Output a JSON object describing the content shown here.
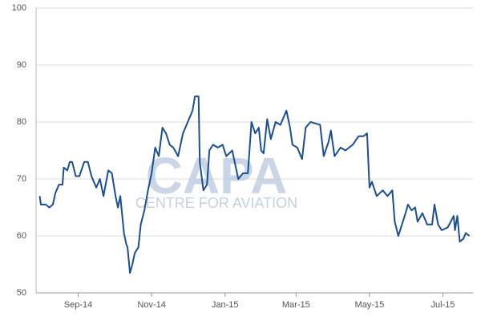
{
  "chart_data": {
    "type": "line",
    "watermark": {
      "title": "CAPA",
      "subtitle": "CENTRE FOR AVIATION"
    },
    "x": [
      -1,
      0,
      4,
      7,
      10,
      12,
      15,
      18,
      19,
      22,
      24,
      26,
      29,
      32,
      36,
      39,
      42,
      46,
      49,
      52,
      56,
      59,
      62,
      64,
      66,
      69,
      71,
      72,
      74,
      76,
      78,
      81,
      83,
      86,
      89,
      92,
      95,
      98,
      101,
      104,
      107,
      110,
      114,
      118,
      122,
      126,
      128,
      131,
      132,
      135,
      138,
      140,
      143,
      147,
      151,
      154,
      159,
      164,
      168,
      172,
      175,
      178,
      181,
      183,
      185,
      188,
      191,
      195,
      199,
      204,
      207,
      209,
      213,
      217,
      220,
      224,
      232,
      235,
      239,
      241,
      244,
      249,
      253,
      259,
      264,
      268,
      271,
      273,
      275,
      279,
      284,
      288,
      292,
      294,
      297,
      300,
      303,
      305,
      308,
      311,
      313,
      317,
      321,
      325,
      327,
      330,
      333,
      338,
      343,
      344,
      346,
      348,
      351,
      353,
      356
    ],
    "series": [
      {
        "name": null,
        "color": "#1a4f96",
        "values": [
          67,
          65.5,
          65.5,
          65,
          65.5,
          67.5,
          69,
          69,
          72,
          71.5,
          73,
          73,
          70.5,
          70.5,
          73,
          73,
          70.5,
          68.5,
          70,
          67,
          71.5,
          71,
          67,
          65,
          67,
          60.5,
          58.5,
          58,
          53.5,
          55,
          57,
          58,
          62,
          64.5,
          68,
          71,
          75.5,
          74,
          79,
          78,
          76,
          75.5,
          74,
          78,
          80,
          82,
          84.5,
          84.5,
          73,
          68,
          69,
          75,
          76,
          75.5,
          76,
          74,
          75,
          70,
          71,
          71,
          80,
          78,
          79,
          75,
          74.5,
          80.5,
          77,
          80,
          79.5,
          82,
          79,
          76,
          75.5,
          73.5,
          79,
          80,
          79.5,
          74,
          76.5,
          78.5,
          74,
          75.5,
          75,
          76,
          77.5,
          77.5,
          78,
          68.5,
          69.5,
          67,
          68,
          67,
          68,
          62.5,
          60,
          62,
          64,
          65.5,
          64.5,
          65,
          62.5,
          64,
          62,
          62,
          65.5,
          62,
          61,
          61.5,
          63.5,
          61,
          63.5,
          59,
          59.5,
          60.5,
          60
        ]
      }
    ],
    "xlim": [
      -4,
      359
    ],
    "xticks": [
      {
        "value": 31,
        "label": "Sep-14"
      },
      {
        "value": 92,
        "label": "Nov-14"
      },
      {
        "value": 153,
        "label": "Jan-15"
      },
      {
        "value": 212,
        "label": "Mar-15"
      },
      {
        "value": 273,
        "label": "May-15"
      },
      {
        "value": 334,
        "label": "Jul-15"
      }
    ],
    "ylim": [
      50,
      100
    ],
    "yticks": [
      50,
      60,
      70,
      80,
      90,
      100
    ],
    "grid": true
  }
}
